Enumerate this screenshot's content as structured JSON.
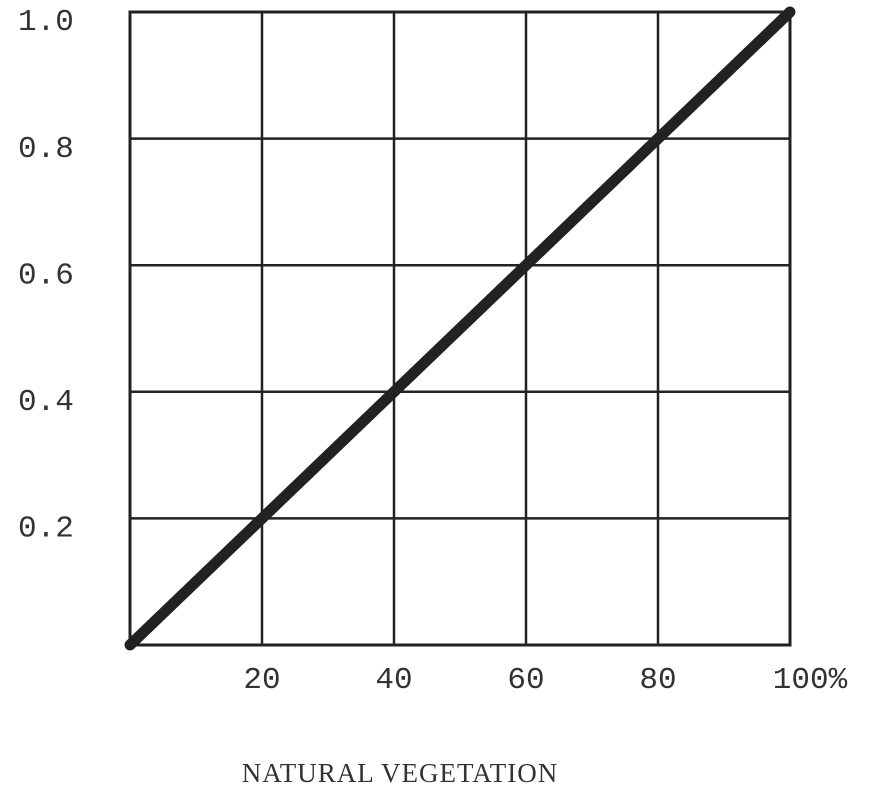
{
  "chart_data": {
    "type": "line",
    "x_label": "NATURAL VEGETATION",
    "series": [
      {
        "x": [
          0,
          100
        ],
        "values": [
          0,
          1
        ],
        "color": "#222222"
      }
    ],
    "xlim": [
      0,
      100
    ],
    "ylim": [
      0,
      1
    ],
    "xticks": [
      20,
      40,
      60,
      80,
      {
        "value": 100,
        "label": "100%"
      }
    ],
    "yticks": [
      0.2,
      0.4,
      0.6,
      0.8,
      {
        "value": 1,
        "label": "1.0"
      }
    ],
    "grid": true
  }
}
